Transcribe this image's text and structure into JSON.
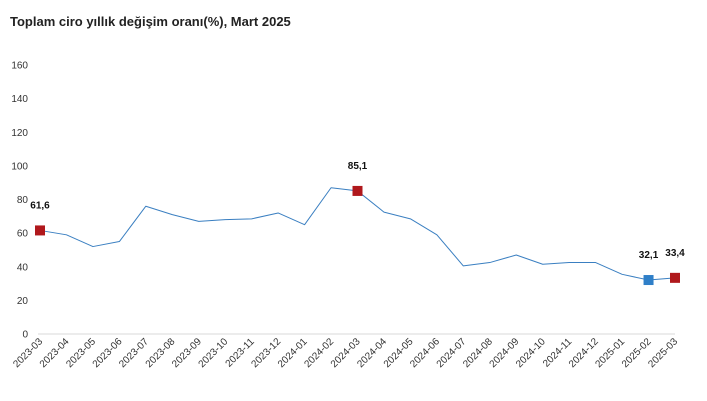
{
  "chart_data": {
    "type": "line",
    "title": "Toplam ciro yıllık değişim oranı(%), Mart 2025",
    "xlabel": "",
    "ylabel": "",
    "ylim": [
      0,
      160
    ],
    "yticks": [
      0,
      20,
      40,
      60,
      80,
      100,
      120,
      140,
      160
    ],
    "grid": false,
    "categories": [
      "2023-03",
      "2023-04",
      "2023-05",
      "2023-06",
      "2023-07",
      "2023-08",
      "2023-09",
      "2023-10",
      "2023-11",
      "2023-12",
      "2024-01",
      "2024-02",
      "2024-03",
      "2024-04",
      "2024-05",
      "2024-06",
      "2024-07",
      "2024-08",
      "2024-09",
      "2024-10",
      "2024-11",
      "2024-12",
      "2025-01",
      "2025-02",
      "2025-03"
    ],
    "series": [
      {
        "values": [
          61.6,
          59,
          52,
          55,
          76,
          71,
          67,
          68,
          68.5,
          72,
          65,
          87,
          85.1,
          72.5,
          68.5,
          59,
          40.5,
          42.5,
          47,
          41.5,
          42.5,
          42.5,
          35.5,
          32.1,
          33.4
        ],
        "color": "#3a7fc1"
      }
    ],
    "highlighted_points": [
      {
        "index": 0,
        "label": "61,6",
        "color": "#b0181c"
      },
      {
        "index": 12,
        "label": "85,1",
        "color": "#b0181c"
      },
      {
        "index": 23,
        "label": "32,1",
        "color": "#2f7fc8"
      },
      {
        "index": 24,
        "label": "33,4",
        "color": "#b0181c"
      }
    ]
  }
}
